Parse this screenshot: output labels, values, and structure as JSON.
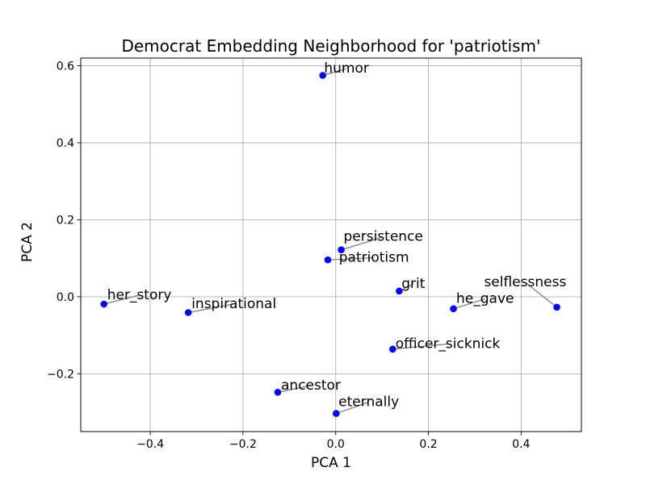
{
  "chart_data": {
    "type": "scatter",
    "title": "Democrat Embedding Neighborhood for 'patriotism'",
    "xlabel": "PCA 1",
    "ylabel": "PCA 2",
    "xlim": [
      -0.55,
      0.53
    ],
    "ylim": [
      -0.35,
      0.62
    ],
    "grid": true,
    "xticks": [
      -0.4,
      -0.2,
      0.0,
      0.2,
      0.4
    ],
    "xtick_labels": [
      "−0.4",
      "−0.2",
      "0.0",
      "0.2",
      "0.4"
    ],
    "yticks": [
      -0.2,
      0.0,
      0.2,
      0.4,
      0.6
    ],
    "ytick_labels": [
      "−0.2",
      "0.0",
      "0.2",
      "0.4",
      "0.6"
    ],
    "marker_color": "#0000ff",
    "leader_color": "#808080",
    "points": [
      {
        "label": "humor",
        "x": -0.028,
        "y": 0.575,
        "label_x": -0.025,
        "label_y": 0.582
      },
      {
        "label": "persistence",
        "x": 0.012,
        "y": 0.122,
        "label_x": 0.017,
        "label_y": 0.145
      },
      {
        "label": "patriotism",
        "x": -0.017,
        "y": 0.096,
        "label_x": 0.007,
        "label_y": 0.091
      },
      {
        "label": "grit",
        "x": 0.137,
        "y": 0.015,
        "label_x": 0.142,
        "label_y": 0.023
      },
      {
        "label": "selflessness",
        "x": 0.477,
        "y": -0.027,
        "label_x": 0.32,
        "label_y": 0.027
      },
      {
        "label": "he_gave",
        "x": 0.254,
        "y": -0.031,
        "label_x": 0.26,
        "label_y": -0.016
      },
      {
        "label": "her_story",
        "x": -0.5,
        "y": -0.019,
        "label_x": -0.493,
        "label_y": -0.006
      },
      {
        "label": "inspirational",
        "x": -0.318,
        "y": -0.041,
        "label_x": -0.311,
        "label_y": -0.029
      },
      {
        "label": "officer_sicknick",
        "x": 0.123,
        "y": -0.136,
        "label_x": 0.129,
        "label_y": -0.133
      },
      {
        "label": "ancestor",
        "x": -0.125,
        "y": -0.248,
        "label_x": -0.118,
        "label_y": -0.241
      },
      {
        "label": "eternally",
        "x": 0.001,
        "y": -0.303,
        "label_x": 0.006,
        "label_y": -0.284
      }
    ]
  }
}
